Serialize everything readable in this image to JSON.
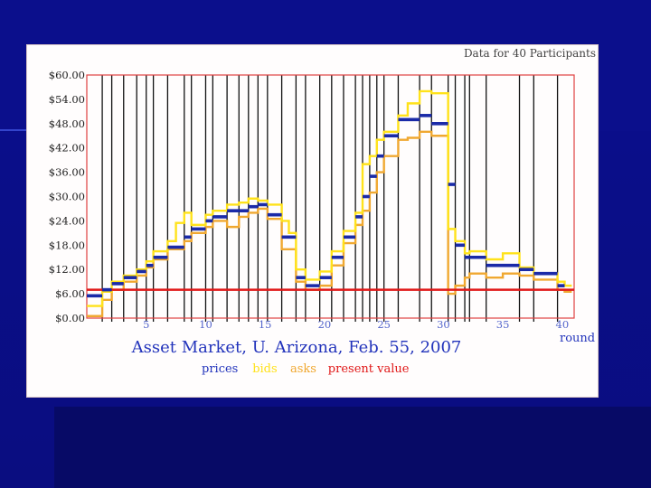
{
  "slide": {
    "background_color": "#0b0f8c",
    "panel_color": "#fffdfd"
  },
  "chart_data": {
    "type": "line",
    "title": "Asset Market, U. Arizona, Feb. 55, 2007",
    "subtitle": "Data for 40 Participants",
    "xlabel": "round",
    "ylabel": "",
    "x_ticks": [
      5,
      10,
      15,
      20,
      25,
      30,
      35,
      40
    ],
    "y_ticks": [
      "$0.00",
      "$6.00",
      "$12.00",
      "$18.00",
      "$24.00",
      "$30.00",
      "$36.00",
      "$42.00",
      "$48.00",
      "$54.00",
      "$60.00"
    ],
    "xlim": [
      0,
      41
    ],
    "ylim": [
      0,
      60
    ],
    "grid": false,
    "legend": {
      "placement": "bottom",
      "entries": [
        {
          "name": "prices",
          "color": "#1a2aa8"
        },
        {
          "name": "bids",
          "color": "#ffe21a"
        },
        {
          "name": "asks",
          "color": "#f0a830"
        },
        {
          "name": "present value",
          "color": "#e01818"
        }
      ]
    },
    "round_boundaries": [
      1.3,
      2.1,
      3.1,
      4.2,
      5.0,
      5.6,
      6.8,
      8.2,
      8.8,
      10.0,
      10.6,
      11.8,
      12.8,
      13.6,
      14.4,
      15.2,
      16.4,
      17.6,
      18.4,
      19.6,
      20.6,
      21.6,
      22.6,
      23.2,
      23.8,
      24.4,
      25.0,
      26.2,
      28.0,
      29.0,
      30.4,
      31.0,
      31.8,
      32.2,
      33.6,
      36.4,
      37.6,
      39.6
    ],
    "series": [
      {
        "name": "prices",
        "color": "#1a2aa8",
        "values": [
          [
            0,
            1.3,
            5.5
          ],
          [
            1.3,
            2.1,
            7.0
          ],
          [
            2.1,
            3.1,
            8.5
          ],
          [
            3.1,
            4.2,
            10.0
          ],
          [
            4.2,
            5.0,
            11.5
          ],
          [
            5.0,
            5.6,
            13.0
          ],
          [
            5.6,
            6.8,
            15.0
          ],
          [
            6.8,
            8.2,
            17.5
          ],
          [
            8.2,
            8.8,
            20.0
          ],
          [
            8.8,
            10.0,
            22.0
          ],
          [
            10.0,
            10.6,
            24.0
          ],
          [
            10.6,
            11.8,
            25.0
          ],
          [
            11.8,
            12.8,
            26.5
          ],
          [
            12.8,
            13.6,
            26.5
          ],
          [
            13.6,
            14.4,
            27.5
          ],
          [
            14.4,
            15.2,
            28.0
          ],
          [
            15.2,
            16.4,
            25.5
          ],
          [
            16.4,
            17.6,
            20.0
          ],
          [
            17.6,
            18.4,
            10.0
          ],
          [
            18.4,
            19.6,
            8.0
          ],
          [
            19.6,
            20.6,
            10.0
          ],
          [
            20.6,
            21.6,
            15.0
          ],
          [
            21.6,
            22.6,
            20.0
          ],
          [
            22.6,
            23.2,
            25.0
          ],
          [
            23.2,
            23.8,
            30.0
          ],
          [
            23.8,
            24.4,
            35.0
          ],
          [
            24.4,
            25.0,
            40.0
          ],
          [
            25.0,
            26.2,
            45.0
          ],
          [
            26.2,
            28.0,
            49.0
          ],
          [
            28.0,
            29.0,
            50.0
          ],
          [
            29.0,
            30.4,
            48.0
          ],
          [
            30.4,
            31.0,
            33.0
          ],
          [
            31.0,
            31.8,
            18.0
          ],
          [
            31.8,
            32.2,
            15.0
          ],
          [
            32.2,
            33.6,
            15.0
          ],
          [
            33.6,
            36.4,
            13.0
          ],
          [
            36.4,
            37.6,
            12.0
          ],
          [
            37.6,
            39.6,
            11.0
          ],
          [
            39.6,
            40.2,
            8.0
          ]
        ]
      },
      {
        "name": "bids",
        "color": "#ffe21a",
        "values": [
          [
            0,
            3.0
          ],
          [
            1.3,
            6.5
          ],
          [
            2.1,
            9.0
          ],
          [
            3.1,
            10.5
          ],
          [
            4.2,
            12.0
          ],
          [
            5.0,
            14.0
          ],
          [
            5.6,
            16.5
          ],
          [
            6.8,
            19.0
          ],
          [
            7.5,
            23.5
          ],
          [
            8.2,
            26.0
          ],
          [
            8.8,
            23.0
          ],
          [
            10.0,
            25.5
          ],
          [
            10.6,
            26.5
          ],
          [
            11.8,
            28.0
          ],
          [
            12.8,
            28.5
          ],
          [
            13.6,
            29.5
          ],
          [
            14.4,
            29.0
          ],
          [
            15.2,
            28.0
          ],
          [
            16.4,
            24.0
          ],
          [
            17.0,
            21.0
          ],
          [
            17.6,
            12.0
          ],
          [
            18.4,
            9.5
          ],
          [
            19.6,
            11.5
          ],
          [
            20.6,
            16.5
          ],
          [
            21.6,
            21.5
          ],
          [
            22.6,
            26.0
          ],
          [
            23.2,
            38.0
          ],
          [
            23.8,
            40.0
          ],
          [
            24.4,
            44.0
          ],
          [
            25.0,
            46.0
          ],
          [
            26.2,
            50.0
          ],
          [
            27.0,
            53.0
          ],
          [
            28.0,
            56.0
          ],
          [
            29.0,
            55.5
          ],
          [
            30.4,
            22.0
          ],
          [
            31.0,
            19.0
          ],
          [
            31.8,
            16.0
          ],
          [
            32.2,
            16.5
          ],
          [
            33.6,
            14.5
          ],
          [
            35.0,
            16.0
          ],
          [
            36.4,
            12.5
          ],
          [
            37.6,
            11.0
          ],
          [
            39.6,
            9.0
          ],
          [
            40.2,
            8.0
          ]
        ]
      },
      {
        "name": "asks",
        "color": "#f0a830",
        "values": [
          [
            0,
            0.5
          ],
          [
            1.3,
            4.5
          ],
          [
            2.1,
            7.0
          ],
          [
            3.1,
            9.0
          ],
          [
            4.2,
            10.5
          ],
          [
            5.0,
            12.5
          ],
          [
            5.6,
            14.5
          ],
          [
            6.8,
            17.0
          ],
          [
            8.2,
            19.0
          ],
          [
            8.8,
            21.0
          ],
          [
            10.0,
            22.5
          ],
          [
            10.6,
            24.0
          ],
          [
            11.8,
            22.5
          ],
          [
            12.8,
            25.0
          ],
          [
            13.6,
            26.0
          ],
          [
            14.4,
            27.0
          ],
          [
            15.2,
            24.5
          ],
          [
            16.4,
            17.0
          ],
          [
            17.6,
            9.0
          ],
          [
            18.4,
            7.0
          ],
          [
            19.6,
            8.0
          ],
          [
            20.6,
            13.0
          ],
          [
            21.6,
            18.5
          ],
          [
            22.6,
            23.0
          ],
          [
            23.2,
            26.5
          ],
          [
            23.8,
            31.0
          ],
          [
            24.4,
            36.0
          ],
          [
            25.0,
            40.0
          ],
          [
            26.2,
            44.0
          ],
          [
            27.0,
            44.5
          ],
          [
            28.0,
            46.0
          ],
          [
            29.0,
            45.0
          ],
          [
            30.4,
            6.0
          ],
          [
            31.0,
            8.0
          ],
          [
            31.8,
            10.0
          ],
          [
            32.2,
            11.0
          ],
          [
            33.6,
            10.0
          ],
          [
            35.0,
            11.0
          ],
          [
            36.4,
            10.5
          ],
          [
            37.6,
            9.5
          ],
          [
            39.6,
            7.0
          ],
          [
            40.2,
            6.5
          ]
        ]
      },
      {
        "name": "present value",
        "color": "#e01818",
        "values": [
          [
            0,
            7.0
          ],
          [
            41,
            7.0
          ]
        ]
      }
    ]
  }
}
